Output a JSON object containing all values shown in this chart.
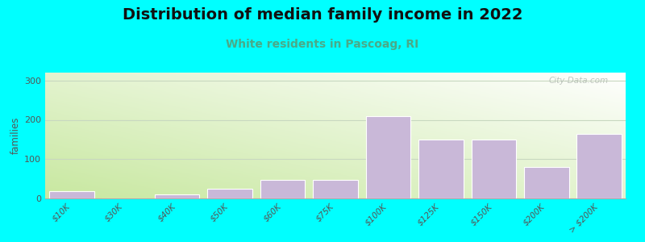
{
  "title": "Distribution of median family income in 2022",
  "subtitle": "White residents in Pascoag, RI",
  "ylabel": "families",
  "background_color": "#00FFFF",
  "plot_bg_color_topleft": "#e8f5d0",
  "plot_bg_color_bottomleft": "#c8e8a0",
  "plot_bg_color_topright": "#ffffff",
  "plot_bg_color_bottomright": "#e0f0e0",
  "bar_color": "#c9b8d8",
  "bar_edge_color": "#ffffff",
  "title_fontsize": 14,
  "subtitle_fontsize": 10,
  "subtitle_color": "#4aaa88",
  "categories": [
    "$10K",
    "$30K",
    "$40K",
    "$50K",
    "$60K",
    "$75K",
    "$100K",
    "$125K",
    "$150K",
    "$200K",
    "> $200K"
  ],
  "values": [
    18,
    0,
    10,
    25,
    48,
    48,
    210,
    150,
    150,
    80,
    165
  ],
  "ylim": [
    0,
    320
  ],
  "yticks": [
    0,
    100,
    200,
    300
  ],
  "watermark": "City-Data.com",
  "grid_color": "#c8d8c0",
  "tick_color": "#555555"
}
